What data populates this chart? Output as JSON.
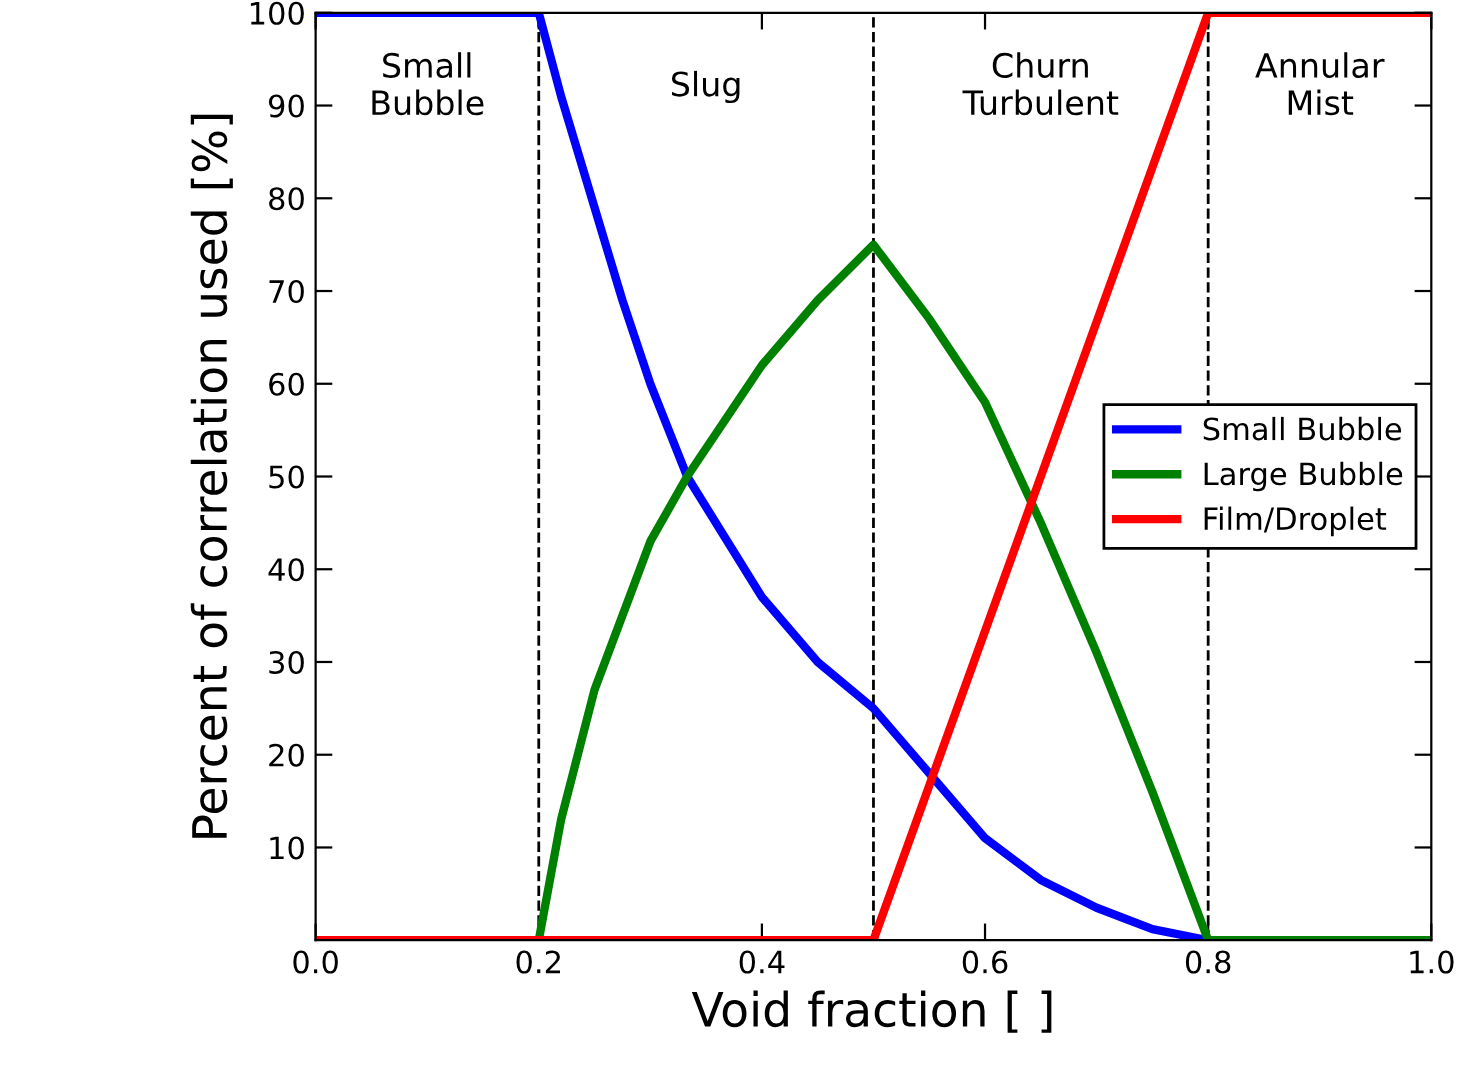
{
  "chart_data": {
    "type": "line",
    "xlabel": "Void fraction [ ]",
    "ylabel": "Percent of correlation used [%]",
    "xlim": [
      0,
      1
    ],
    "ylim": [
      0,
      100
    ],
    "xticks": [
      {
        "value": 0,
        "label": "0.0"
      },
      0.2,
      0.4,
      0.6,
      0.8,
      {
        "value": 1,
        "label": "1.0"
      }
    ],
    "yticks": [
      10,
      20,
      30,
      40,
      50,
      60,
      70,
      80,
      90,
      100
    ],
    "series": [
      {
        "name": "Small Bubble",
        "color": "#0000ff",
        "x": [
          0,
          0.2,
          0.22,
          0.25,
          0.275,
          0.3,
          0.333,
          0.4,
          0.45,
          0.5,
          0.55,
          0.6,
          0.65,
          0.7,
          0.75,
          0.8,
          1
        ],
        "values": [
          100,
          100,
          91,
          79,
          69,
          60,
          50,
          37,
          30,
          25,
          18,
          11,
          6.5,
          3.5,
          1.2,
          0,
          0
        ]
      },
      {
        "name": "Large Bubble",
        "color": "#008000",
        "x": [
          0,
          0.2,
          0.22,
          0.25,
          0.3,
          0.333,
          0.4,
          0.45,
          0.5,
          0.55,
          0.6,
          0.65,
          0.7,
          0.75,
          0.8,
          1
        ],
        "values": [
          0,
          0,
          13,
          27,
          43,
          50,
          62,
          69,
          75,
          67,
          58,
          45,
          31,
          16,
          0,
          0
        ]
      },
      {
        "name": "Film/Droplet",
        "color": "#ff0000",
        "x": [
          0,
          0.5,
          0.8,
          1
        ],
        "values": [
          0,
          0,
          100,
          100
        ]
      }
    ],
    "ref_lines": [
      {
        "axis": "x",
        "value": 0.2,
        "color": "#000000",
        "line_style": "dashed"
      },
      {
        "axis": "x",
        "value": 0.5,
        "color": "#000000",
        "line_style": "dashed"
      },
      {
        "axis": "x",
        "value": 0.8,
        "color": "#000000",
        "line_style": "dashed"
      }
    ],
    "annotations": [
      "Small\nBubble",
      "Slug",
      "Churn\nTurbulent",
      "Annular\nMist"
    ],
    "legend": "center right",
    "grid": false,
    "marker": "none",
    "line_style": "solid"
  }
}
